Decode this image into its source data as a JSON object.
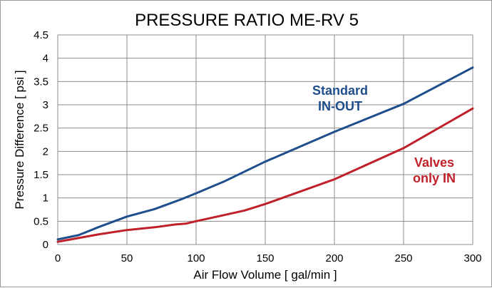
{
  "chart_data": {
    "type": "line",
    "title": "PRESSURE RATIO ME-RV 5",
    "xlabel": "Air Flow Volume [ gal/min ]",
    "ylabel": "Pressure Difference [ psi ]",
    "xlim": [
      0,
      300
    ],
    "ylim": [
      0,
      4.5
    ],
    "xticks": [
      0,
      50,
      100,
      150,
      200,
      250,
      300
    ],
    "yticks": [
      0,
      0.5,
      1,
      1.5,
      2,
      2.5,
      3,
      3.5,
      4,
      4.5
    ],
    "grid": true,
    "series": [
      {
        "name": "Standard IN-OUT",
        "label_lines": [
          "Standard",
          "IN-OUT"
        ],
        "color": "#1f4e8c",
        "x": [
          0,
          15,
          30,
          50,
          70,
          90,
          100,
          120,
          150,
          200,
          250,
          300
        ],
        "y": [
          0.11,
          0.2,
          0.38,
          0.6,
          0.76,
          0.98,
          1.1,
          1.35,
          1.78,
          2.42,
          3.02,
          3.8
        ]
      },
      {
        "name": "Valves only IN",
        "label_lines": [
          "Valves",
          "only IN"
        ],
        "color": "#c0202a",
        "x": [
          0,
          15,
          30,
          50,
          70,
          85,
          93,
          100,
          120,
          135,
          150,
          200,
          250,
          300
        ],
        "y": [
          0.06,
          0.14,
          0.22,
          0.31,
          0.37,
          0.43,
          0.45,
          0.5,
          0.63,
          0.73,
          0.87,
          1.4,
          2.07,
          2.92
        ]
      }
    ]
  }
}
